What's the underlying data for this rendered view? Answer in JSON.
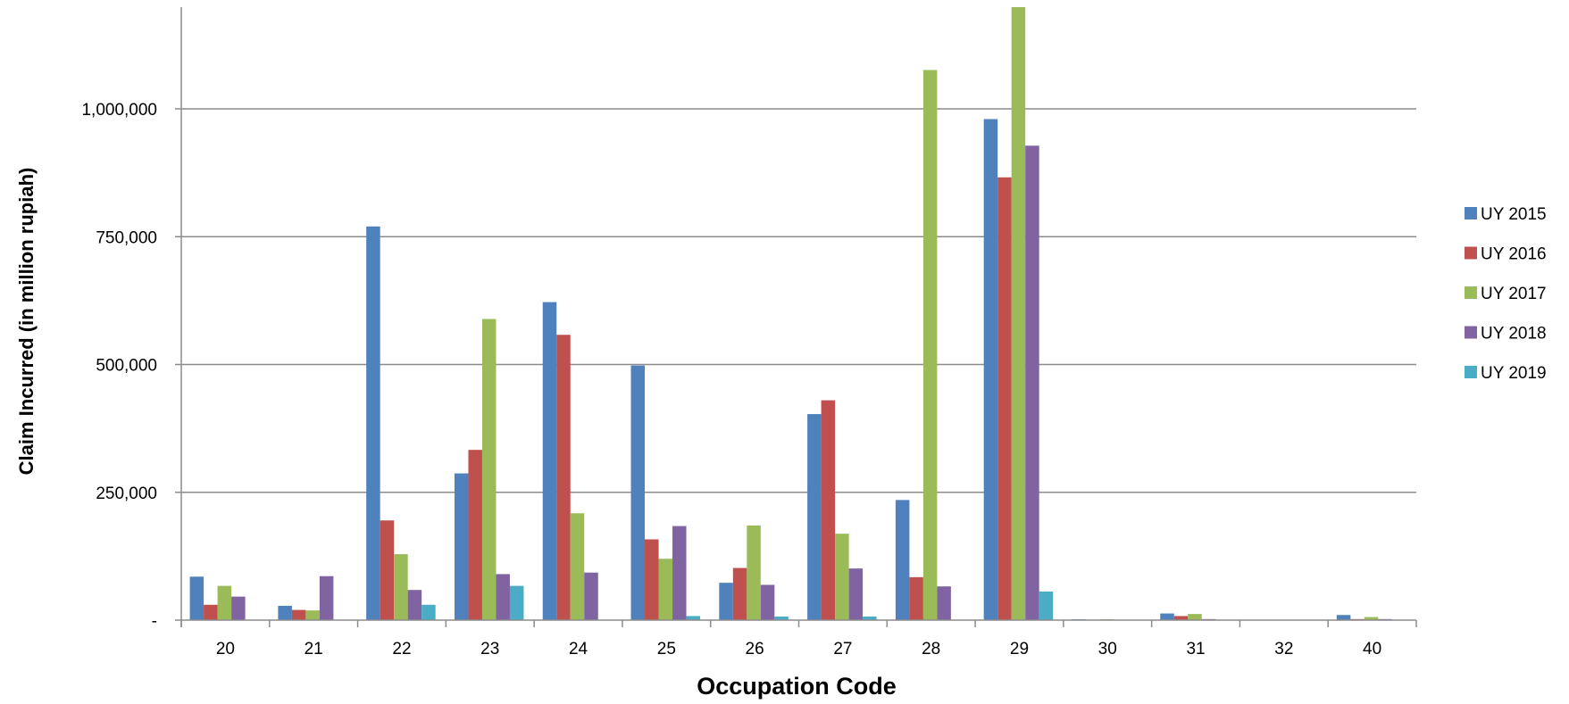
{
  "chart_data": {
    "type": "bar",
    "xlabel": "Occupation Code",
    "ylabel": "Claim Incurred (in million rupiah)",
    "categories": [
      "20",
      "21",
      "22",
      "23",
      "24",
      "25",
      "26",
      "27",
      "28",
      "29",
      "30",
      "31",
      "32",
      "40"
    ],
    "ylim": [
      0,
      1200000
    ],
    "yticks": [
      0,
      250000,
      500000,
      750000,
      1000000
    ],
    "ytick_labels": [
      "-",
      "250,000",
      "500,000",
      "750,000",
      "1,000,000"
    ],
    "grid": true,
    "legend_position": "right",
    "series": [
      {
        "name": "UY 2015",
        "color": "#4F81BD",
        "values": [
          85000,
          28000,
          770000,
          287000,
          622000,
          498000,
          73000,
          403000,
          235000,
          980000,
          1500,
          13000,
          0,
          10000
        ]
      },
      {
        "name": "UY 2016",
        "color": "#C0504D",
        "values": [
          30000,
          20000,
          195000,
          333000,
          558000,
          158000,
          102000,
          430000,
          84000,
          866000,
          1000,
          8000,
          0,
          2000
        ]
      },
      {
        "name": "UY 2017",
        "color": "#9BBB59",
        "values": [
          67000,
          19000,
          129000,
          589000,
          209000,
          120000,
          185000,
          169000,
          1076000,
          1200000,
          1500,
          12000,
          0,
          6000
        ]
      },
      {
        "name": "UY 2018",
        "color": "#8064A2",
        "values": [
          46000,
          86000,
          59000,
          90000,
          93000,
          184000,
          69000,
          101000,
          66000,
          928000,
          500,
          2000,
          0,
          2000
        ]
      },
      {
        "name": "UY 2019",
        "color": "#4BACC6",
        "values": [
          0,
          0,
          30000,
          67000,
          0,
          8000,
          7000,
          7000,
          0,
          56000,
          0,
          0,
          0,
          0
        ]
      }
    ]
  }
}
